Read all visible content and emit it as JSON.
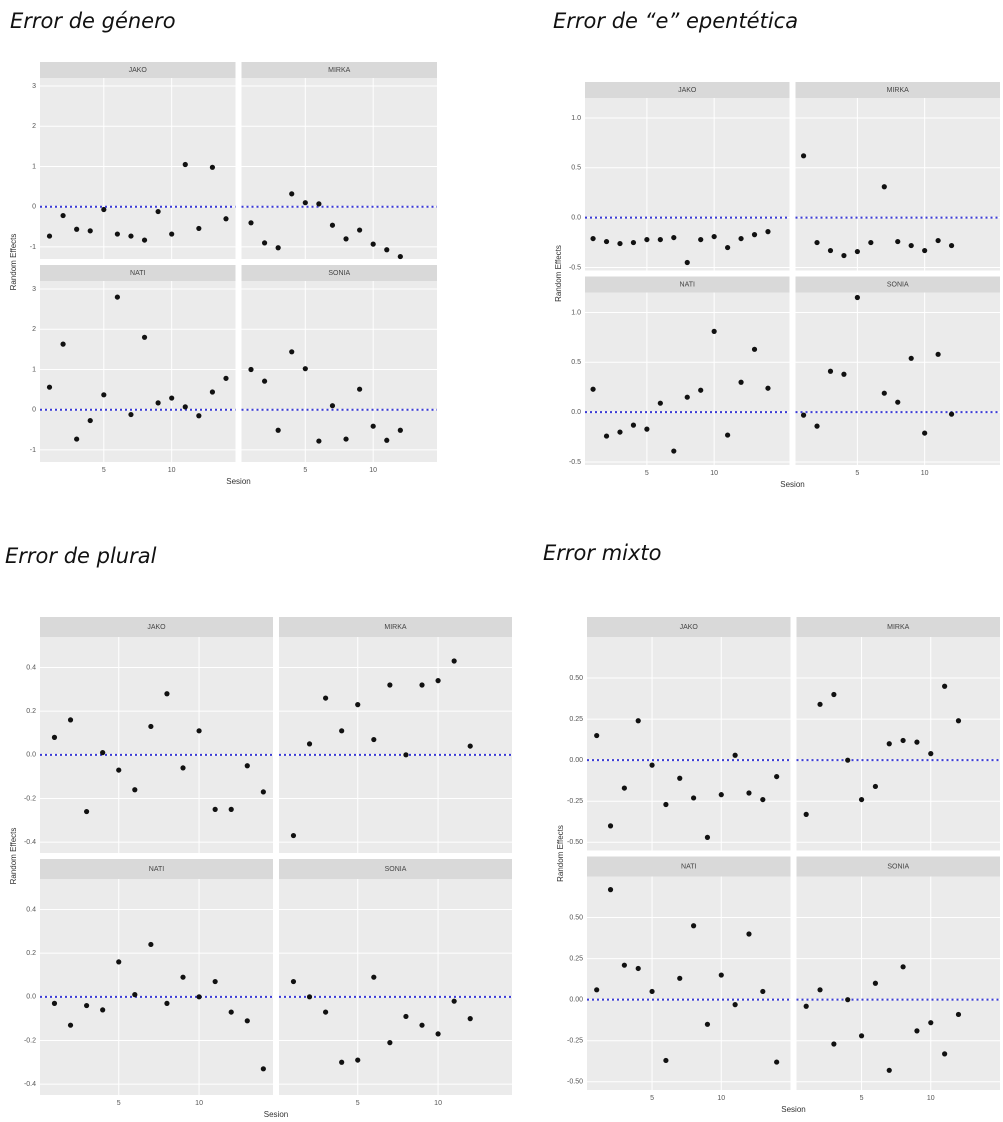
{
  "chart_data": [
    {
      "type": "scatter",
      "title": "Error de género",
      "x_label": "Sesion",
      "y_label": "Random Effects",
      "xlim": [
        0.3,
        14.7
      ],
      "xticks": [
        5,
        10
      ],
      "ylim": [
        -1.3,
        3.2
      ],
      "yticks": [
        -1,
        0,
        1,
        2,
        3
      ],
      "hline": 0,
      "color": "#111111",
      "hline_color": "#3b3bd6",
      "grid": true,
      "panels": [
        {
          "name": "JAKO",
          "x": [
            1,
            2,
            3,
            4,
            5,
            6,
            7,
            8,
            9,
            10,
            11,
            12,
            13,
            14
          ],
          "values": [
            -0.73,
            -0.22,
            -0.56,
            -0.6,
            -0.07,
            -0.68,
            -0.73,
            -0.83,
            -0.12,
            -0.68,
            1.05,
            -0.54,
            0.98,
            -0.3
          ]
        },
        {
          "name": "MIRKA",
          "x": [
            1,
            2,
            3,
            4,
            5,
            6,
            7,
            8,
            9,
            10,
            11,
            12
          ],
          "values": [
            -0.4,
            -0.9,
            -1.02,
            0.32,
            0.1,
            0.07,
            -0.46,
            -0.8,
            -0.58,
            -0.93,
            -1.07,
            -1.24
          ]
        },
        {
          "name": "NATI",
          "x": [
            1,
            2,
            3,
            4,
            5,
            6,
            7,
            8,
            9,
            10,
            11,
            12,
            13,
            14
          ],
          "values": [
            0.56,
            1.63,
            -0.73,
            -0.27,
            0.37,
            2.8,
            -0.12,
            1.8,
            0.17,
            0.29,
            0.07,
            -0.15,
            0.44,
            0.78
          ]
        },
        {
          "name": "SONIA",
          "x": [
            1,
            2,
            3,
            4,
            5,
            6,
            7,
            8,
            9,
            10,
            11,
            12
          ],
          "values": [
            1.0,
            0.71,
            -0.51,
            1.44,
            1.02,
            -0.78,
            0.1,
            -0.73,
            0.51,
            -0.41,
            -0.76,
            -0.51
          ]
        }
      ]
    },
    {
      "type": "scatter",
      "title": "Error de “e” epentética",
      "x_label": "Sesion",
      "y_label": "Random Effects",
      "xlim": [
        0.4,
        15.6
      ],
      "xticks": [
        5,
        10
      ],
      "ylim": [
        -0.53,
        1.2
      ],
      "yticks": [
        {
          "value": -0.5,
          "label": "-0.5"
        },
        {
          "value": 0,
          "label": "0.0"
        },
        0.5,
        {
          "value": 1,
          "label": "1.0"
        }
      ],
      "hline": 0,
      "color": "#111111",
      "hline_color": "#3b3bd6",
      "grid": true,
      "panels": [
        {
          "name": "JAKO",
          "x": [
            1,
            2,
            3,
            4,
            5,
            6,
            7,
            8,
            9,
            10,
            11,
            12,
            13,
            14
          ],
          "values": [
            -0.21,
            -0.24,
            -0.26,
            -0.25,
            -0.22,
            -0.22,
            -0.2,
            -0.45,
            -0.22,
            -0.19,
            -0.3,
            -0.21,
            -0.17,
            -0.14
          ]
        },
        {
          "name": "MIRKA",
          "x": [
            1,
            2,
            3,
            4,
            5,
            6,
            7,
            8,
            9,
            10,
            11,
            12
          ],
          "values": [
            0.62,
            -0.25,
            -0.33,
            -0.38,
            -0.34,
            -0.25,
            0.31,
            -0.24,
            -0.28,
            -0.33,
            -0.23,
            -0.28
          ]
        },
        {
          "name": "NATI",
          "x": [
            1,
            2,
            3,
            4,
            5,
            6,
            7,
            8,
            9,
            10,
            11,
            12,
            13,
            14
          ],
          "values": [
            0.23,
            -0.24,
            -0.2,
            -0.13,
            -0.17,
            0.09,
            -0.39,
            0.15,
            0.22,
            0.81,
            -0.23,
            0.3,
            0.63,
            0.24
          ]
        },
        {
          "name": "SONIA",
          "x": [
            1,
            2,
            3,
            4,
            5,
            7,
            8,
            9,
            10,
            11,
            12
          ],
          "values": [
            -0.03,
            -0.14,
            0.41,
            0.38,
            1.15,
            0.19,
            0.1,
            0.54,
            -0.21,
            0.58,
            -0.02
          ]
        }
      ]
    },
    {
      "type": "scatter",
      "title": "Error de plural",
      "x_label": "Sesion",
      "y_label": "Random Effects",
      "xlim": [
        0.1,
        14.6
      ],
      "xticks": [
        5,
        10
      ],
      "ylim": [
        -0.45,
        0.54
      ],
      "yticks": [
        -0.4,
        -0.2,
        {
          "value": 0,
          "label": "0.0"
        },
        0.2,
        0.4
      ],
      "hline": 0,
      "color": "#111111",
      "hline_color": "#3b3bd6",
      "grid": true,
      "panels": [
        {
          "name": "JAKO",
          "x": [
            1,
            2,
            3,
            4,
            5,
            6,
            7,
            8,
            9,
            10,
            11,
            12,
            13,
            14
          ],
          "values": [
            0.08,
            0.16,
            -0.26,
            0.01,
            -0.07,
            -0.16,
            0.13,
            0.28,
            -0.06,
            0.11,
            -0.25,
            -0.25,
            -0.05,
            -0.17
          ]
        },
        {
          "name": "MIRKA",
          "x": [
            1,
            2,
            3,
            4,
            5,
            6,
            7,
            8,
            9,
            10,
            11,
            12
          ],
          "values": [
            -0.37,
            0.05,
            0.26,
            0.11,
            0.23,
            0.07,
            0.32,
            0.0,
            0.32,
            0.34,
            0.43,
            0.04
          ]
        },
        {
          "name": "NATI",
          "x": [
            1,
            2,
            3,
            4,
            5,
            6,
            7,
            8,
            9,
            10,
            11,
            12,
            13,
            14
          ],
          "values": [
            -0.03,
            -0.13,
            -0.04,
            -0.06,
            0.16,
            0.01,
            0.24,
            -0.03,
            0.09,
            0.0,
            0.07,
            -0.07,
            -0.11,
            -0.33
          ]
        },
        {
          "name": "SONIA",
          "x": [
            1,
            2,
            3,
            4,
            5,
            6,
            7,
            8,
            9,
            10,
            11,
            12
          ],
          "values": [
            0.07,
            0.0,
            -0.07,
            -0.3,
            -0.29,
            0.09,
            -0.21,
            -0.09,
            -0.13,
            -0.17,
            -0.02,
            -0.1
          ]
        }
      ]
    },
    {
      "type": "scatter",
      "title": "Error mixto",
      "x_label": "Sesion",
      "y_label": "Random Effects",
      "xlim": [
        0.3,
        15
      ],
      "xticks": [
        5,
        10
      ],
      "ylim": [
        -0.55,
        0.75
      ],
      "yticks": [
        {
          "value": -0.5,
          "label": "-0.50"
        },
        -0.25,
        {
          "value": 0,
          "label": "0.00"
        },
        0.25,
        {
          "value": 0.5,
          "label": "0.50"
        }
      ],
      "hline": 0,
      "color": "#111111",
      "hline_color": "#3b3bd6",
      "grid": true,
      "panels": [
        {
          "name": "JAKO",
          "x": [
            1,
            2,
            3,
            4,
            5,
            6,
            7,
            8,
            9,
            10,
            11,
            12,
            13,
            14
          ],
          "values": [
            0.15,
            -0.4,
            -0.17,
            0.24,
            -0.03,
            -0.27,
            -0.11,
            -0.23,
            -0.47,
            -0.21,
            0.03,
            -0.2,
            -0.24,
            -0.1
          ]
        },
        {
          "name": "MIRKA",
          "x": [
            1,
            2,
            3,
            4,
            5,
            6,
            7,
            8,
            9,
            10,
            11,
            12
          ],
          "values": [
            -0.33,
            0.34,
            0.4,
            0.0,
            -0.24,
            -0.16,
            0.1,
            0.12,
            0.11,
            0.04,
            0.45,
            0.24
          ]
        },
        {
          "name": "NATI",
          "x": [
            1,
            2,
            3,
            4,
            5,
            6,
            7,
            8,
            9,
            10,
            11,
            12,
            13,
            14
          ],
          "values": [
            0.06,
            0.67,
            0.21,
            0.19,
            0.05,
            -0.37,
            0.13,
            0.45,
            -0.15,
            0.15,
            -0.03,
            0.4,
            0.05,
            -0.38
          ]
        },
        {
          "name": "SONIA",
          "x": [
            1,
            2,
            3,
            4,
            5,
            6,
            7,
            8,
            9,
            10,
            11,
            12
          ],
          "values": [
            -0.04,
            0.06,
            -0.27,
            0.0,
            -0.22,
            0.1,
            -0.43,
            0.2,
            -0.19,
            -0.14,
            -0.33,
            -0.09
          ]
        }
      ]
    }
  ]
}
